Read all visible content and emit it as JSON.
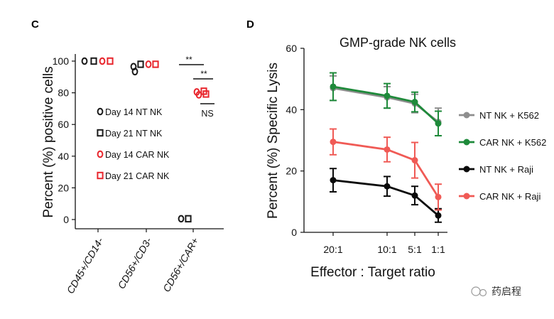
{
  "panel_c_label": "C",
  "panel_d_label": "D",
  "watermark": "药启程",
  "chart_data": [
    {
      "type": "scatter",
      "panel": "C",
      "title": "",
      "xlabel": "",
      "ylabel": "Percent (%) positive cells",
      "ylim": [
        0,
        100
      ],
      "yticks": [
        "100",
        "80",
        "60",
        "40",
        "20",
        "0"
      ],
      "categories": [
        "CD45+/CD14-",
        "CD56+/CD3-",
        "CD56+/CAR+"
      ],
      "series": [
        {
          "name": "Day 14 NT NK",
          "marker": "circle",
          "color": "#1a1a1a",
          "values": [
            100,
            96.5,
            0.5
          ]
        },
        {
          "name": "Day 21 NT NK",
          "marker": "square",
          "color": "#1a1a1a",
          "values": [
            100,
            98,
            0.5
          ]
        },
        {
          "name": "Day 14 CAR NK",
          "marker": "circle",
          "color": "#e8262d",
          "values": [
            100,
            98,
            80.5
          ]
        },
        {
          "name": "Day 21 CAR NK",
          "marker": "square",
          "color": "#e8262d",
          "values": [
            100,
            98,
            81
          ]
        }
      ],
      "annotations": [
        "**",
        "**",
        "NS"
      ]
    },
    {
      "type": "line",
      "panel": "D",
      "title": "GMP-grade NK cells",
      "xlabel": "Effector : Target ratio",
      "ylabel": "Percent (%) Specific Lysis",
      "ylim": [
        0,
        60
      ],
      "yticks": [
        "60",
        "40",
        "20",
        "0"
      ],
      "categories": [
        "20:1",
        "10:1",
        "5:1",
        "1:1"
      ],
      "series": [
        {
          "name": "NT NK + K562",
          "color": "#8e8e8e",
          "values": [
            47,
            44,
            42,
            36
          ],
          "err": [
            4,
            3.5,
            3,
            4.5
          ]
        },
        {
          "name": "CAR NK + K562",
          "color": "#1e8a3a",
          "values": [
            47.5,
            44.5,
            42.5,
            35.5
          ],
          "err": [
            4.5,
            4,
            3.2,
            4
          ]
        },
        {
          "name": "NT NK + Raji",
          "color": "#0a0a0a",
          "values": [
            17,
            15,
            12,
            5.5
          ],
          "err": [
            3.8,
            3.2,
            3,
            2.2
          ]
        },
        {
          "name": "CAR NK + Raji",
          "color": "#f05a55",
          "values": [
            29.5,
            27,
            23.5,
            11.5
          ],
          "err": [
            4.2,
            4,
            5.8,
            4.2
          ]
        }
      ]
    }
  ]
}
